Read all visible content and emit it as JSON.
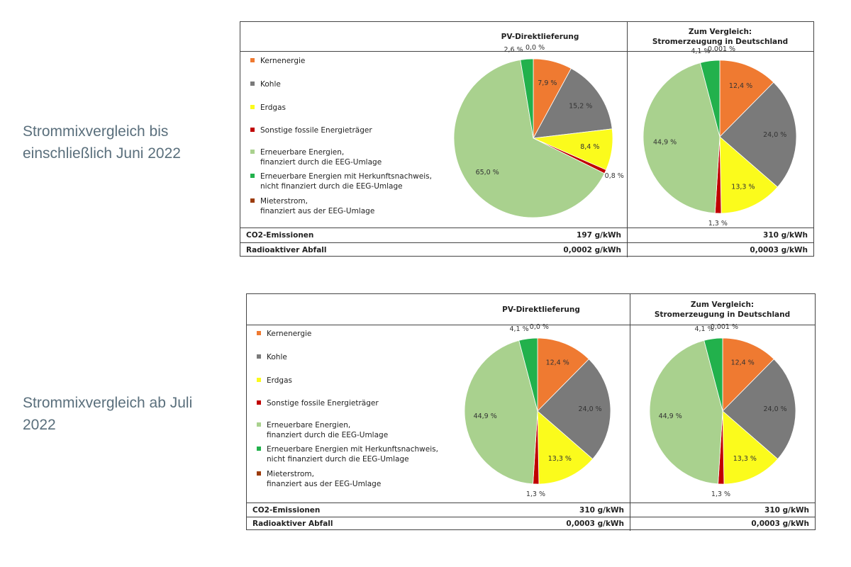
{
  "captions": {
    "block1": "Strommixvergleich bis einschließlich Juni 2022",
    "block2": "Strommixvergleich ab Juli 2022"
  },
  "legend": [
    {
      "label": "Kernenergie",
      "label2": "",
      "color": "#ef7a31"
    },
    {
      "label": "Kohle",
      "label2": "",
      "color": "#7a7a7a"
    },
    {
      "label": "Erdgas",
      "label2": "",
      "color": "#fbfb1c"
    },
    {
      "label": "Sonstige fossile Energieträger",
      "label2": "",
      "color": "#c00000"
    },
    {
      "label": "Erneuerbare Energien,",
      "label2": "finanziert durch die EEG-Umlage",
      "color": "#a9d18e"
    },
    {
      "label": "Erneuerbare Energien mit Herkunftsnachweis,",
      "label2": "nicht finanziert durch die EEG-Umlage",
      "color": "#22b14c"
    },
    {
      "label": "Mieterstrom,",
      "label2": "finanziert aus der EEG-Umlage",
      "color": "#9c3c0c"
    }
  ],
  "columns": {
    "pv": "PV-Direktlieferung",
    "de_line1": "Zum Vergleich:",
    "de_line2": "Stromerzeugung in Deutschland"
  },
  "metrics": {
    "co2_label": "CO2-Emissionen",
    "waste_label": "Radioaktiver Abfall"
  },
  "blocks": [
    {
      "co2_pv": "197 g/kWh",
      "co2_de": "310 g/kWh",
      "waste_pv": "0,0002 g/kWh",
      "waste_de": "0,0003 g/kWh"
    },
    {
      "co2_pv": "310 g/kWh",
      "co2_de": "310 g/kWh",
      "waste_pv": "0,0003 g/kWh",
      "waste_de": "0,0003 g/kWh"
    }
  ],
  "chart_data": [
    {
      "type": "pie",
      "block": 1,
      "column": "PV-Direktlieferung",
      "slices": [
        {
          "name": "Kernenergie",
          "value": 7.9,
          "label": "7,9 %",
          "color": "#ef7a31"
        },
        {
          "name": "Kohle",
          "value": 15.2,
          "label": "15,2 %",
          "color": "#7a7a7a"
        },
        {
          "name": "Erdgas",
          "value": 8.4,
          "label": "8,4 %",
          "color": "#fbfb1c"
        },
        {
          "name": "Sonstige fossile Energieträger",
          "value": 0.8,
          "label": "0,8 %",
          "color": "#c00000"
        },
        {
          "name": "Erneuerbare Energien, finanziert durch die EEG-Umlage",
          "value": 65.0,
          "label": "65,0 %",
          "color": "#a9d18e"
        },
        {
          "name": "Erneuerbare Energien mit Herkunftsnachweis, nicht finanziert durch die EEG-Umlage",
          "value": 2.6,
          "label": "2,6 %",
          "color": "#22b14c"
        },
        {
          "name": "Mieterstrom, finanziert aus der EEG-Umlage",
          "value": 0.0,
          "label": "0,0 %",
          "color": "#9c3c0c"
        }
      ]
    },
    {
      "type": "pie",
      "block": 1,
      "column": "Zum Vergleich: Stromerzeugung in Deutschland",
      "slices": [
        {
          "name": "Kernenergie",
          "value": 12.4,
          "label": "12,4 %",
          "color": "#ef7a31"
        },
        {
          "name": "Kohle",
          "value": 24.0,
          "label": "24,0 %",
          "color": "#7a7a7a"
        },
        {
          "name": "Erdgas",
          "value": 13.3,
          "label": "13,3 %",
          "color": "#fbfb1c"
        },
        {
          "name": "Sonstige fossile Energieträger",
          "value": 1.3,
          "label": "1,3 %",
          "color": "#c00000"
        },
        {
          "name": "Erneuerbare Energien, finanziert durch die EEG-Umlage",
          "value": 44.9,
          "label": "44,9 %",
          "color": "#a9d18e"
        },
        {
          "name": "Erneuerbare Energien mit Herkunftsnachweis, nicht finanziert durch die EEG-Umlage",
          "value": 4.1,
          "label": "4,1 %",
          "color": "#22b14c"
        },
        {
          "name": "Mieterstrom, finanziert aus der EEG-Umlage",
          "value": 0.001,
          "label": "0,001 %",
          "color": "#9c3c0c"
        }
      ]
    },
    {
      "type": "pie",
      "block": 2,
      "column": "PV-Direktlieferung",
      "slices": [
        {
          "name": "Kernenergie",
          "value": 12.4,
          "label": "12,4 %",
          "color": "#ef7a31"
        },
        {
          "name": "Kohle",
          "value": 24.0,
          "label": "24,0 %",
          "color": "#7a7a7a"
        },
        {
          "name": "Erdgas",
          "value": 13.3,
          "label": "13,3 %",
          "color": "#fbfb1c"
        },
        {
          "name": "Sonstige fossile Energieträger",
          "value": 1.3,
          "label": "1,3 %",
          "color": "#c00000"
        },
        {
          "name": "Erneuerbare Energien, finanziert durch die EEG-Umlage",
          "value": 44.9,
          "label": "44,9 %",
          "color": "#a9d18e"
        },
        {
          "name": "Erneuerbare Energien mit Herkunftsnachweis, nicht finanziert durch die EEG-Umlage",
          "value": 4.1,
          "label": "4,1 %",
          "color": "#22b14c"
        },
        {
          "name": "Mieterstrom, finanziert aus der EEG-Umlage",
          "value": 0.0,
          "label": "0,0 %",
          "color": "#9c3c0c"
        }
      ]
    },
    {
      "type": "pie",
      "block": 2,
      "column": "Zum Vergleich: Stromerzeugung in Deutschland",
      "slices": [
        {
          "name": "Kernenergie",
          "value": 12.4,
          "label": "12,4 %",
          "color": "#ef7a31"
        },
        {
          "name": "Kohle",
          "value": 24.0,
          "label": "24,0 %",
          "color": "#7a7a7a"
        },
        {
          "name": "Erdgas",
          "value": 13.3,
          "label": "13,3 %",
          "color": "#fbfb1c"
        },
        {
          "name": "Sonstige fossile Energieträger",
          "value": 1.3,
          "label": "1,3 %",
          "color": "#c00000"
        },
        {
          "name": "Erneuerbare Energien, finanziert durch die EEG-Umlage",
          "value": 44.9,
          "label": "44,9 %",
          "color": "#a9d18e"
        },
        {
          "name": "Erneuerbare Energien mit Herkunftsnachweis, nicht finanziert durch die EEG-Umlage",
          "value": 4.1,
          "label": "4,1 %",
          "color": "#22b14c"
        },
        {
          "name": "Mieterstrom, finanziert aus der EEG-Umlage",
          "value": 0.001,
          "label": "0,001 %",
          "color": "#9c3c0c"
        }
      ]
    }
  ]
}
